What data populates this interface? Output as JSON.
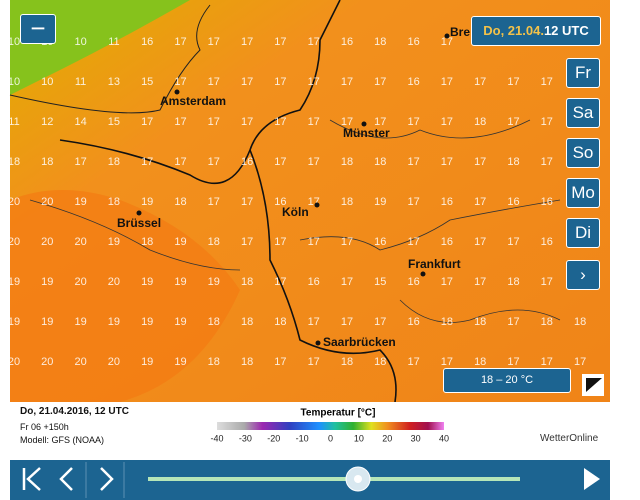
{
  "map": {
    "badge": {
      "date": "Do, 21.04.",
      "time": "12 UTC"
    },
    "days": [
      "Fr",
      "Sa",
      "So",
      "Mo",
      "Di"
    ],
    "range": "18 – 20 °C",
    "cities": [
      "Bre",
      "Amsterdam",
      "Münster",
      "Brüssel",
      "Köln",
      "Frankfurt",
      "Saarbrücken"
    ],
    "grid": [
      [
        10,
        10,
        10,
        11,
        16,
        17,
        17,
        17,
        17,
        17,
        16,
        18,
        16,
        17,
        null,
        null,
        null,
        null
      ],
      [
        10,
        10,
        11,
        13,
        15,
        17,
        17,
        17,
        17,
        17,
        17,
        17,
        16,
        17,
        17,
        17,
        17,
        null
      ],
      [
        11,
        12,
        14,
        15,
        17,
        17,
        17,
        17,
        17,
        17,
        17,
        17,
        17,
        17,
        18,
        17,
        17,
        null
      ],
      [
        18,
        18,
        17,
        18,
        17,
        17,
        17,
        16,
        17,
        17,
        18,
        18,
        17,
        17,
        17,
        18,
        17,
        null
      ],
      [
        20,
        20,
        19,
        18,
        19,
        18,
        17,
        17,
        16,
        17,
        18,
        19,
        17,
        16,
        17,
        16,
        16,
        null
      ],
      [
        20,
        20,
        20,
        19,
        18,
        19,
        18,
        17,
        17,
        17,
        17,
        16,
        17,
        16,
        17,
        17,
        16,
        null
      ],
      [
        19,
        19,
        20,
        20,
        19,
        19,
        19,
        18,
        17,
        16,
        17,
        15,
        16,
        17,
        17,
        18,
        17,
        17
      ],
      [
        19,
        19,
        19,
        19,
        19,
        19,
        18,
        18,
        18,
        17,
        17,
        17,
        16,
        18,
        18,
        17,
        18,
        18
      ],
      [
        20,
        20,
        20,
        20,
        19,
        19,
        18,
        18,
        17,
        17,
        18,
        18,
        17,
        17,
        18,
        17,
        17,
        17
      ]
    ]
  },
  "info": {
    "date": "Do, 21.04.2016, 12 UTC",
    "run": "Fr 06 +150h",
    "model": "Modell: GFS (NOAA)",
    "brand": "WetterOnline"
  },
  "legend": {
    "title": "Temperatur [°C]",
    "ticks": [
      -40,
      -30,
      -20,
      -10,
      0,
      10,
      20,
      30,
      40
    ]
  }
}
